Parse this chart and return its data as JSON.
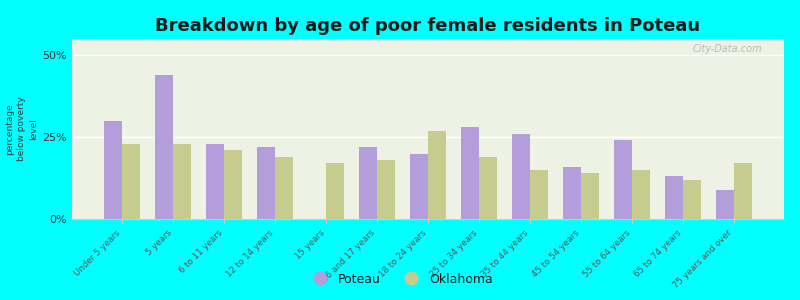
{
  "title": "Breakdown by age of poor female residents in Poteau",
  "ylabel": "percentage\nbelow poverty\nlevel",
  "categories": [
    "Under 5 years",
    "5 years",
    "6 to 11 years",
    "12 to 14 years",
    "15 years",
    "16 and 17 years",
    "18 to 24 years",
    "25 to 34 years",
    "35 to 44 years",
    "45 to 54 years",
    "55 to 64 years",
    "65 to 74 years",
    "75 years and over"
  ],
  "poteau_values": [
    30,
    44,
    23,
    22,
    0,
    22,
    20,
    28,
    26,
    16,
    24,
    13,
    9
  ],
  "oklahoma_values": [
    23,
    23,
    21,
    19,
    17,
    18,
    27,
    19,
    15,
    14,
    15,
    12,
    17
  ],
  "poteau_color": "#b39ddb",
  "oklahoma_color": "#c5cc8e",
  "background_color": "#00ffff",
  "plot_bg_color": "#eef2e4",
  "ylim": [
    0,
    55
  ],
  "yticks": [
    0,
    25,
    50
  ],
  "ytick_labels": [
    "0%",
    "25%",
    "50%"
  ],
  "title_fontsize": 13,
  "legend_poteau": "Poteau",
  "legend_oklahoma": "Oklahoma",
  "watermark": "City-Data.com"
}
